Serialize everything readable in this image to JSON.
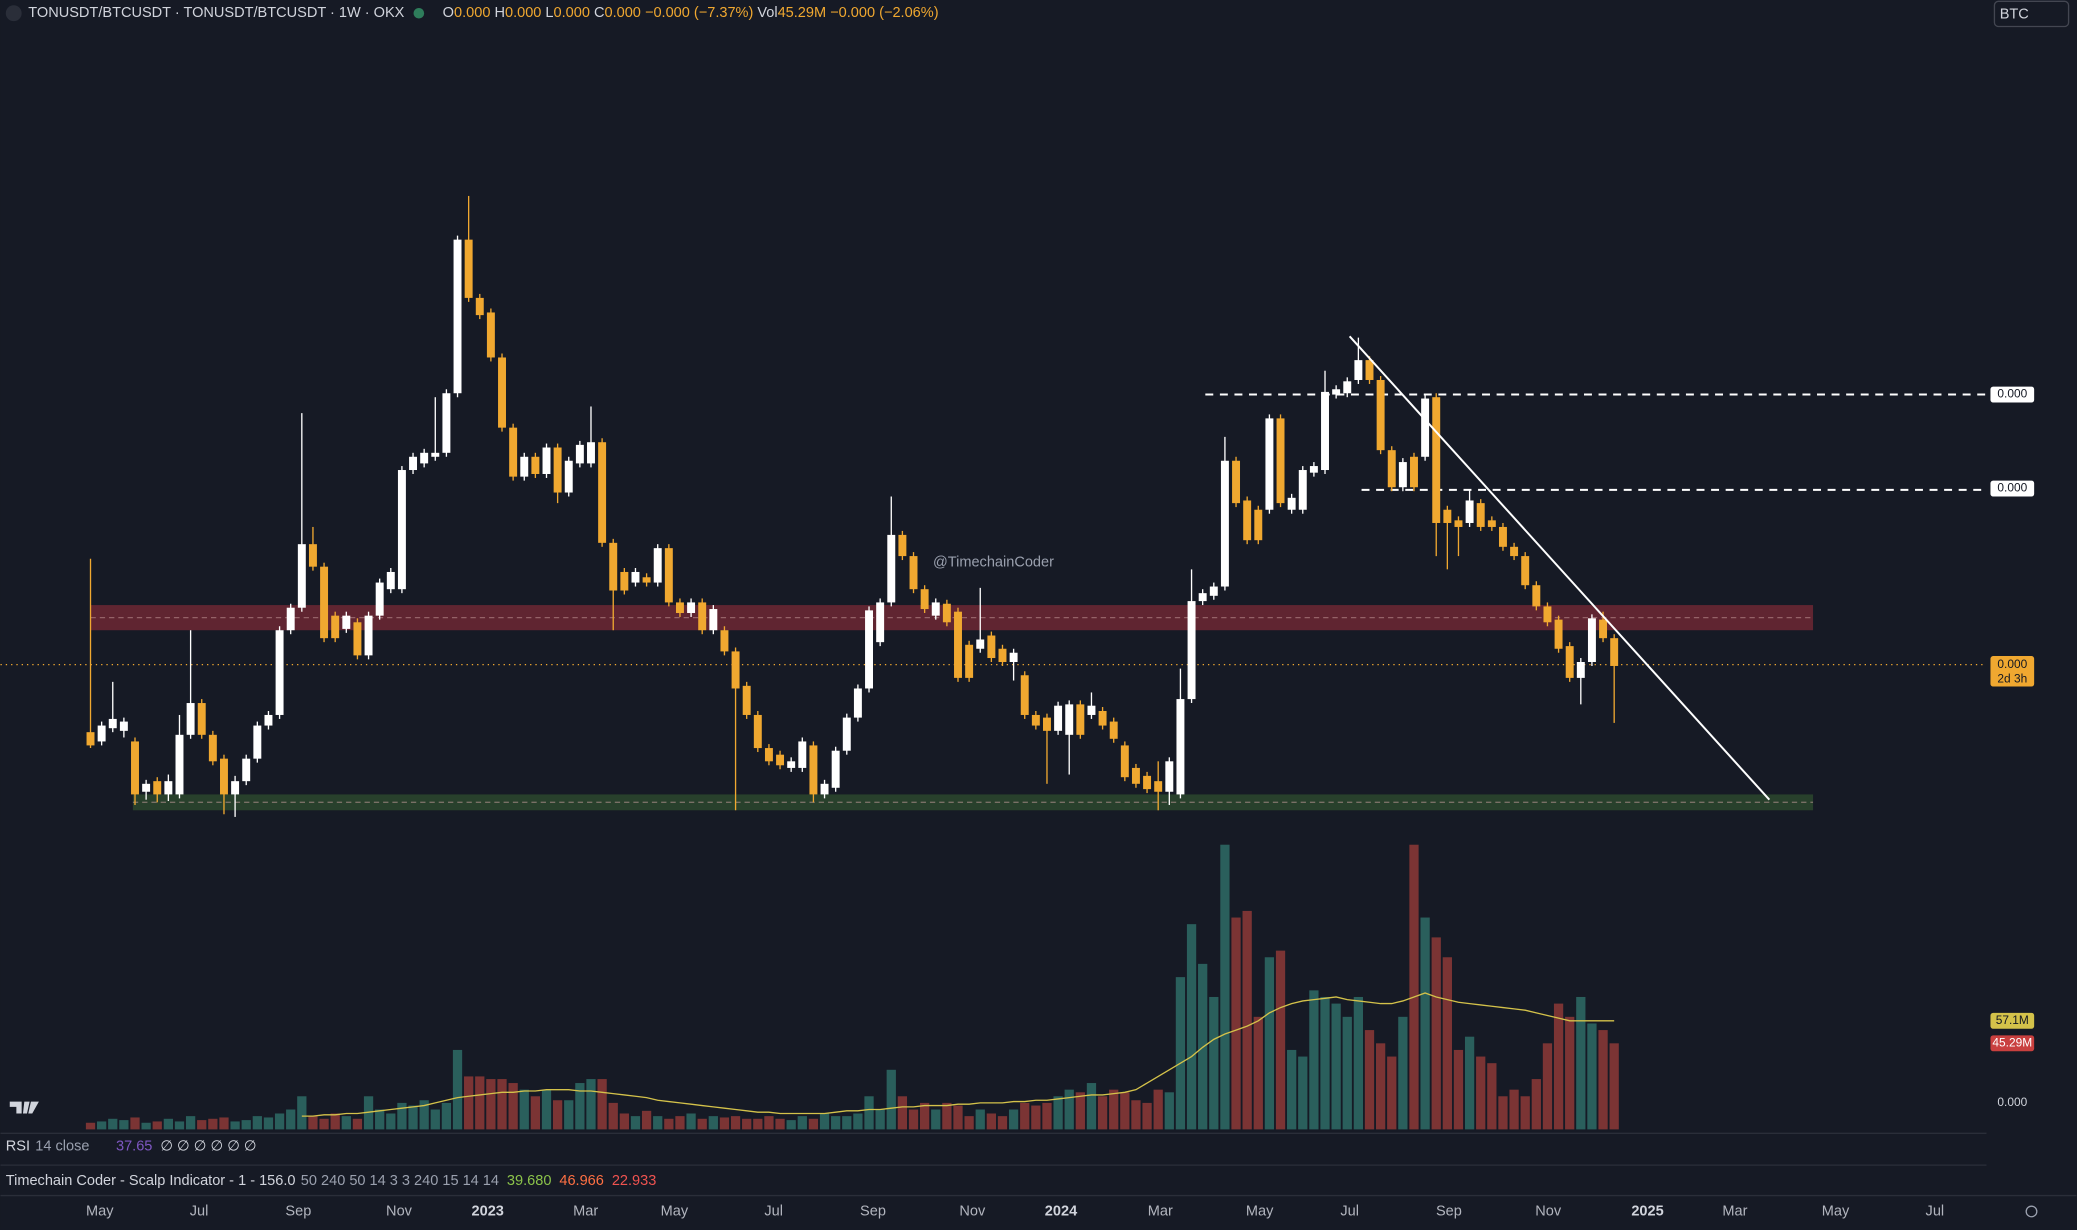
{
  "header": {
    "symbol": "TONUSDT/BTCUSDT · TONUSDT/BTCUSDT · 1W · OKX",
    "quote": [
      {
        "text": "O",
        "color": "#d1d4dc"
      },
      {
        "text": "0.000",
        "color": "#f0a830"
      },
      {
        "text": " H",
        "color": "#d1d4dc"
      },
      {
        "text": "0.000",
        "color": "#f0a830"
      },
      {
        "text": " L",
        "color": "#d1d4dc"
      },
      {
        "text": "0.000",
        "color": "#f0a830"
      },
      {
        "text": " C",
        "color": "#d1d4dc"
      },
      {
        "text": "0.000",
        "color": "#f0a830"
      },
      {
        "text": " −0.000 (−7.37%)",
        "color": "#f0a830"
      },
      {
        "text": "  Vol",
        "color": "#d1d4dc"
      },
      {
        "text": "45.29M",
        "color": "#f0a830"
      },
      {
        "text": " −0.000 (−2.06%)",
        "color": "#f0a830"
      }
    ],
    "currency": "BTC"
  },
  "watermark": "@TimechainCoder",
  "chart_data": {
    "type": "candlestick",
    "ylim": [
      0,
      620
    ],
    "up_color": "#ffffff",
    "down_color": "#f0a830",
    "ohlc": [
      [
        67,
        198,
        55,
        57
      ],
      [
        60,
        75,
        57,
        72
      ],
      [
        70,
        105,
        67,
        77
      ],
      [
        68,
        78,
        63,
        75
      ],
      [
        60,
        63,
        12,
        20
      ],
      [
        22,
        31,
        16,
        28
      ],
      [
        30,
        33,
        14,
        20
      ],
      [
        20,
        35,
        15,
        30
      ],
      [
        20,
        80,
        17,
        65
      ],
      [
        65,
        144,
        62,
        89
      ],
      [
        89,
        92,
        62,
        65
      ],
      [
        65,
        68,
        42,
        45
      ],
      [
        47,
        50,
        5,
        20
      ],
      [
        20,
        34,
        3,
        30
      ],
      [
        30,
        50,
        27,
        47
      ],
      [
        47,
        75,
        44,
        72
      ],
      [
        72,
        83,
        69,
        80
      ],
      [
        80,
        147,
        77,
        144
      ],
      [
        144,
        164,
        141,
        161
      ],
      [
        161,
        308,
        158,
        209
      ],
      [
        209,
        222,
        189,
        192
      ],
      [
        192,
        195,
        135,
        138
      ],
      [
        155,
        158,
        135,
        138
      ],
      [
        145,
        158,
        142,
        155
      ],
      [
        150,
        153,
        122,
        125
      ],
      [
        125,
        158,
        122,
        155
      ],
      [
        155,
        183,
        152,
        180
      ],
      [
        175,
        191,
        172,
        188
      ],
      [
        175,
        268,
        172,
        265
      ],
      [
        265,
        278,
        262,
        275
      ],
      [
        270,
        281,
        267,
        278
      ],
      [
        275,
        320,
        272,
        278
      ],
      [
        278,
        326,
        275,
        323
      ],
      [
        323,
        442,
        320,
        439
      ],
      [
        439,
        472,
        392,
        395
      ],
      [
        395,
        398,
        379,
        382
      ],
      [
        384,
        387,
        347,
        350
      ],
      [
        350,
        353,
        294,
        297
      ],
      [
        297,
        300,
        257,
        260
      ],
      [
        260,
        278,
        257,
        275
      ],
      [
        275,
        278,
        259,
        262
      ],
      [
        262,
        285,
        259,
        282
      ],
      [
        282,
        285,
        240,
        248
      ],
      [
        248,
        275,
        245,
        272
      ],
      [
        270,
        287,
        267,
        284
      ],
      [
        270,
        313,
        267,
        286
      ],
      [
        286,
        289,
        207,
        210
      ],
      [
        210,
        213,
        144,
        174
      ],
      [
        188,
        191,
        171,
        174
      ],
      [
        180,
        191,
        177,
        188
      ],
      [
        184,
        187,
        177,
        180
      ],
      [
        180,
        209,
        177,
        206
      ],
      [
        206,
        209,
        162,
        165
      ],
      [
        165,
        168,
        154,
        157
      ],
      [
        157,
        168,
        154,
        165
      ],
      [
        165,
        168,
        141,
        144
      ],
      [
        144,
        163,
        141,
        160
      ],
      [
        144,
        147,
        125,
        128
      ],
      [
        128,
        131,
        8,
        100
      ],
      [
        102,
        105,
        77,
        80
      ],
      [
        80,
        83,
        52,
        55
      ],
      [
        55,
        58,
        42,
        45
      ],
      [
        50,
        53,
        39,
        42
      ],
      [
        40,
        48,
        37,
        45
      ],
      [
        40,
        63,
        37,
        60
      ],
      [
        57,
        60,
        14,
        20
      ],
      [
        20,
        31,
        17,
        28
      ],
      [
        25,
        56,
        22,
        53
      ],
      [
        53,
        81,
        50,
        78
      ],
      [
        78,
        103,
        75,
        100
      ],
      [
        100,
        162,
        97,
        159
      ],
      [
        135,
        168,
        132,
        165
      ],
      [
        165,
        245,
        162,
        216
      ],
      [
        216,
        219,
        197,
        200
      ],
      [
        200,
        203,
        172,
        175
      ],
      [
        175,
        178,
        157,
        160
      ],
      [
        155,
        168,
        152,
        165
      ],
      [
        164,
        167,
        147,
        150
      ],
      [
        158,
        161,
        105,
        108
      ],
      [
        133,
        136,
        105,
        108
      ],
      [
        130,
        176,
        127,
        137
      ],
      [
        140,
        143,
        120,
        123
      ],
      [
        130,
        133,
        117,
        120
      ],
      [
        120,
        130,
        106,
        127
      ],
      [
        110,
        113,
        77,
        80
      ],
      [
        80,
        83,
        69,
        72
      ],
      [
        78,
        81,
        28,
        68
      ],
      [
        68,
        90,
        65,
        87
      ],
      [
        65,
        91,
        35,
        88
      ],
      [
        88,
        91,
        62,
        65
      ],
      [
        80,
        97,
        77,
        87
      ],
      [
        83,
        86,
        69,
        72
      ],
      [
        75,
        78,
        59,
        62
      ],
      [
        57,
        60,
        30,
        33
      ],
      [
        40,
        43,
        25,
        28
      ],
      [
        34,
        37,
        21,
        24
      ],
      [
        30,
        45,
        8,
        22
      ],
      [
        22,
        48,
        12,
        45
      ],
      [
        20,
        115,
        17,
        92
      ],
      [
        92,
        190,
        89,
        166
      ],
      [
        166,
        175,
        163,
        172
      ],
      [
        170,
        180,
        167,
        177
      ],
      [
        177,
        290,
        174,
        272
      ],
      [
        272,
        275,
        237,
        240
      ],
      [
        242,
        245,
        209,
        212
      ],
      [
        235,
        238,
        209,
        212
      ],
      [
        235,
        307,
        232,
        304
      ],
      [
        304,
        307,
        237,
        240
      ],
      [
        235,
        247,
        232,
        244
      ],
      [
        235,
        268,
        232,
        265
      ],
      [
        263,
        271,
        260,
        268
      ],
      [
        265,
        340,
        262,
        324
      ],
      [
        322,
        329,
        319,
        326
      ],
      [
        323,
        335,
        320,
        332
      ],
      [
        333,
        365,
        330,
        348
      ],
      [
        348,
        351,
        330,
        333
      ],
      [
        333,
        336,
        277,
        280
      ],
      [
        280,
        283,
        249,
        252
      ],
      [
        252,
        274,
        249,
        271
      ],
      [
        275,
        278,
        249,
        252
      ],
      [
        275,
        322,
        272,
        319
      ],
      [
        320,
        323,
        200,
        225
      ],
      [
        235,
        238,
        190,
        225
      ],
      [
        227,
        230,
        200,
        222
      ],
      [
        225,
        250,
        222,
        242
      ],
      [
        240,
        243,
        219,
        222
      ],
      [
        227,
        230,
        219,
        222
      ],
      [
        222,
        225,
        204,
        207
      ],
      [
        207,
        210,
        197,
        200
      ],
      [
        200,
        203,
        175,
        178
      ],
      [
        178,
        181,
        159,
        162
      ],
      [
        162,
        165,
        147,
        150
      ],
      [
        152,
        155,
        127,
        130
      ],
      [
        132,
        135,
        105,
        108
      ],
      [
        108,
        123,
        88,
        120
      ],
      [
        120,
        156,
        117,
        153
      ],
      [
        152,
        158,
        135,
        138
      ],
      [
        138,
        141,
        74,
        117
      ]
    ],
    "zones": [
      {
        "from": 144,
        "to": 163,
        "color": "#7a2a35"
      },
      {
        "from": 8,
        "to": 20,
        "color": "#2f4d2f"
      }
    ],
    "level_labels": [
      "0.000",
      "0.000"
    ],
    "last_price_label": "0.000",
    "countdown": "2d 3h",
    "volume": {
      "vlim": [
        0,
        220
      ],
      "up_color": "#2a5f5c",
      "down_color": "#7b3434",
      "ma_color": "#d4c24a",
      "values": [
        5,
        6,
        8,
        7,
        9,
        5,
        6,
        8,
        6,
        10,
        7,
        8,
        9,
        6,
        7,
        10,
        9,
        12,
        15,
        25,
        10,
        8,
        12,
        10,
        8,
        25,
        15,
        12,
        20,
        18,
        22,
        15,
        20,
        60,
        40,
        40,
        38,
        38,
        35,
        30,
        25,
        30,
        22,
        22,
        35,
        38,
        38,
        20,
        12,
        10,
        14,
        10,
        8,
        10,
        12,
        8,
        10,
        9,
        10,
        8,
        8,
        10,
        8,
        7,
        10,
        8,
        12,
        10,
        10,
        12,
        25,
        15,
        45,
        25,
        15,
        20,
        15,
        20,
        18,
        10,
        15,
        12,
        10,
        15,
        20,
        18,
        20,
        25,
        30,
        28,
        35,
        25,
        30,
        28,
        22,
        20,
        30,
        28,
        115,
        155,
        125,
        100,
        215,
        160,
        165,
        85,
        130,
        135,
        60,
        55,
        105,
        100,
        95,
        85,
        100,
        75,
        65,
        55,
        85,
        215,
        160,
        145,
        130,
        60,
        70,
        55,
        50,
        25,
        30,
        25,
        38,
        65,
        95,
        85,
        100,
        80,
        75,
        65
      ],
      "ma": [
        null,
        null,
        null,
        null,
        null,
        null,
        null,
        null,
        null,
        null,
        null,
        null,
        null,
        null,
        null,
        null,
        null,
        null,
        null,
        10,
        10,
        11,
        11,
        12,
        12,
        13,
        14,
        15,
        16,
        17,
        18,
        20,
        22,
        24,
        25,
        26,
        27,
        28,
        28,
        29,
        29,
        30,
        30,
        30,
        29,
        29,
        28,
        27,
        26,
        25,
        24,
        22,
        21,
        20,
        19,
        18,
        17,
        16,
        15,
        14,
        13,
        13,
        12,
        12,
        12,
        12,
        12,
        13,
        14,
        14,
        15,
        15,
        16,
        17,
        17,
        18,
        18,
        18,
        19,
        19,
        20,
        20,
        20,
        21,
        21,
        22,
        22,
        23,
        24,
        25,
        26,
        26,
        27,
        28,
        30,
        35,
        40,
        45,
        50,
        55,
        62,
        68,
        72,
        75,
        78,
        82,
        88,
        92,
        95,
        97,
        98,
        99,
        100,
        98,
        97,
        96,
        95,
        95,
        97,
        100,
        103,
        100,
        98,
        96,
        95,
        94,
        93,
        92,
        91,
        90,
        88,
        86,
        84,
        82,
        82,
        82,
        82,
        82
      ],
      "ma_label": "57.1M",
      "last_label": "45.29M",
      "axis_label": "0.000"
    }
  },
  "indicators": {
    "rsi": {
      "name": "RSI",
      "params": "14 close",
      "value": "37.65",
      "extra": "∅ ∅ ∅ ∅ ∅ ∅"
    },
    "scalp": {
      "name": "Timechain Coder - Scalp Indicator - 1 - 156.0",
      "params": "50 240 50 14 3 3 240 15 14 14",
      "values": [
        {
          "text": "39.680",
          "color": "#8bc34a"
        },
        {
          "text": "46.966",
          "color": "#ff7043"
        },
        {
          "text": "22.933",
          "color": "#ef5350"
        }
      ]
    }
  },
  "time_axis": [
    "May",
    "Jul",
    "Sep",
    "Nov",
    "2023",
    "Mar",
    "May",
    "Jul",
    "Sep",
    "Nov",
    "2024",
    "Mar",
    "May",
    "Jul",
    "Sep",
    "Nov",
    "2025",
    "Mar",
    "May",
    "Jul"
  ]
}
